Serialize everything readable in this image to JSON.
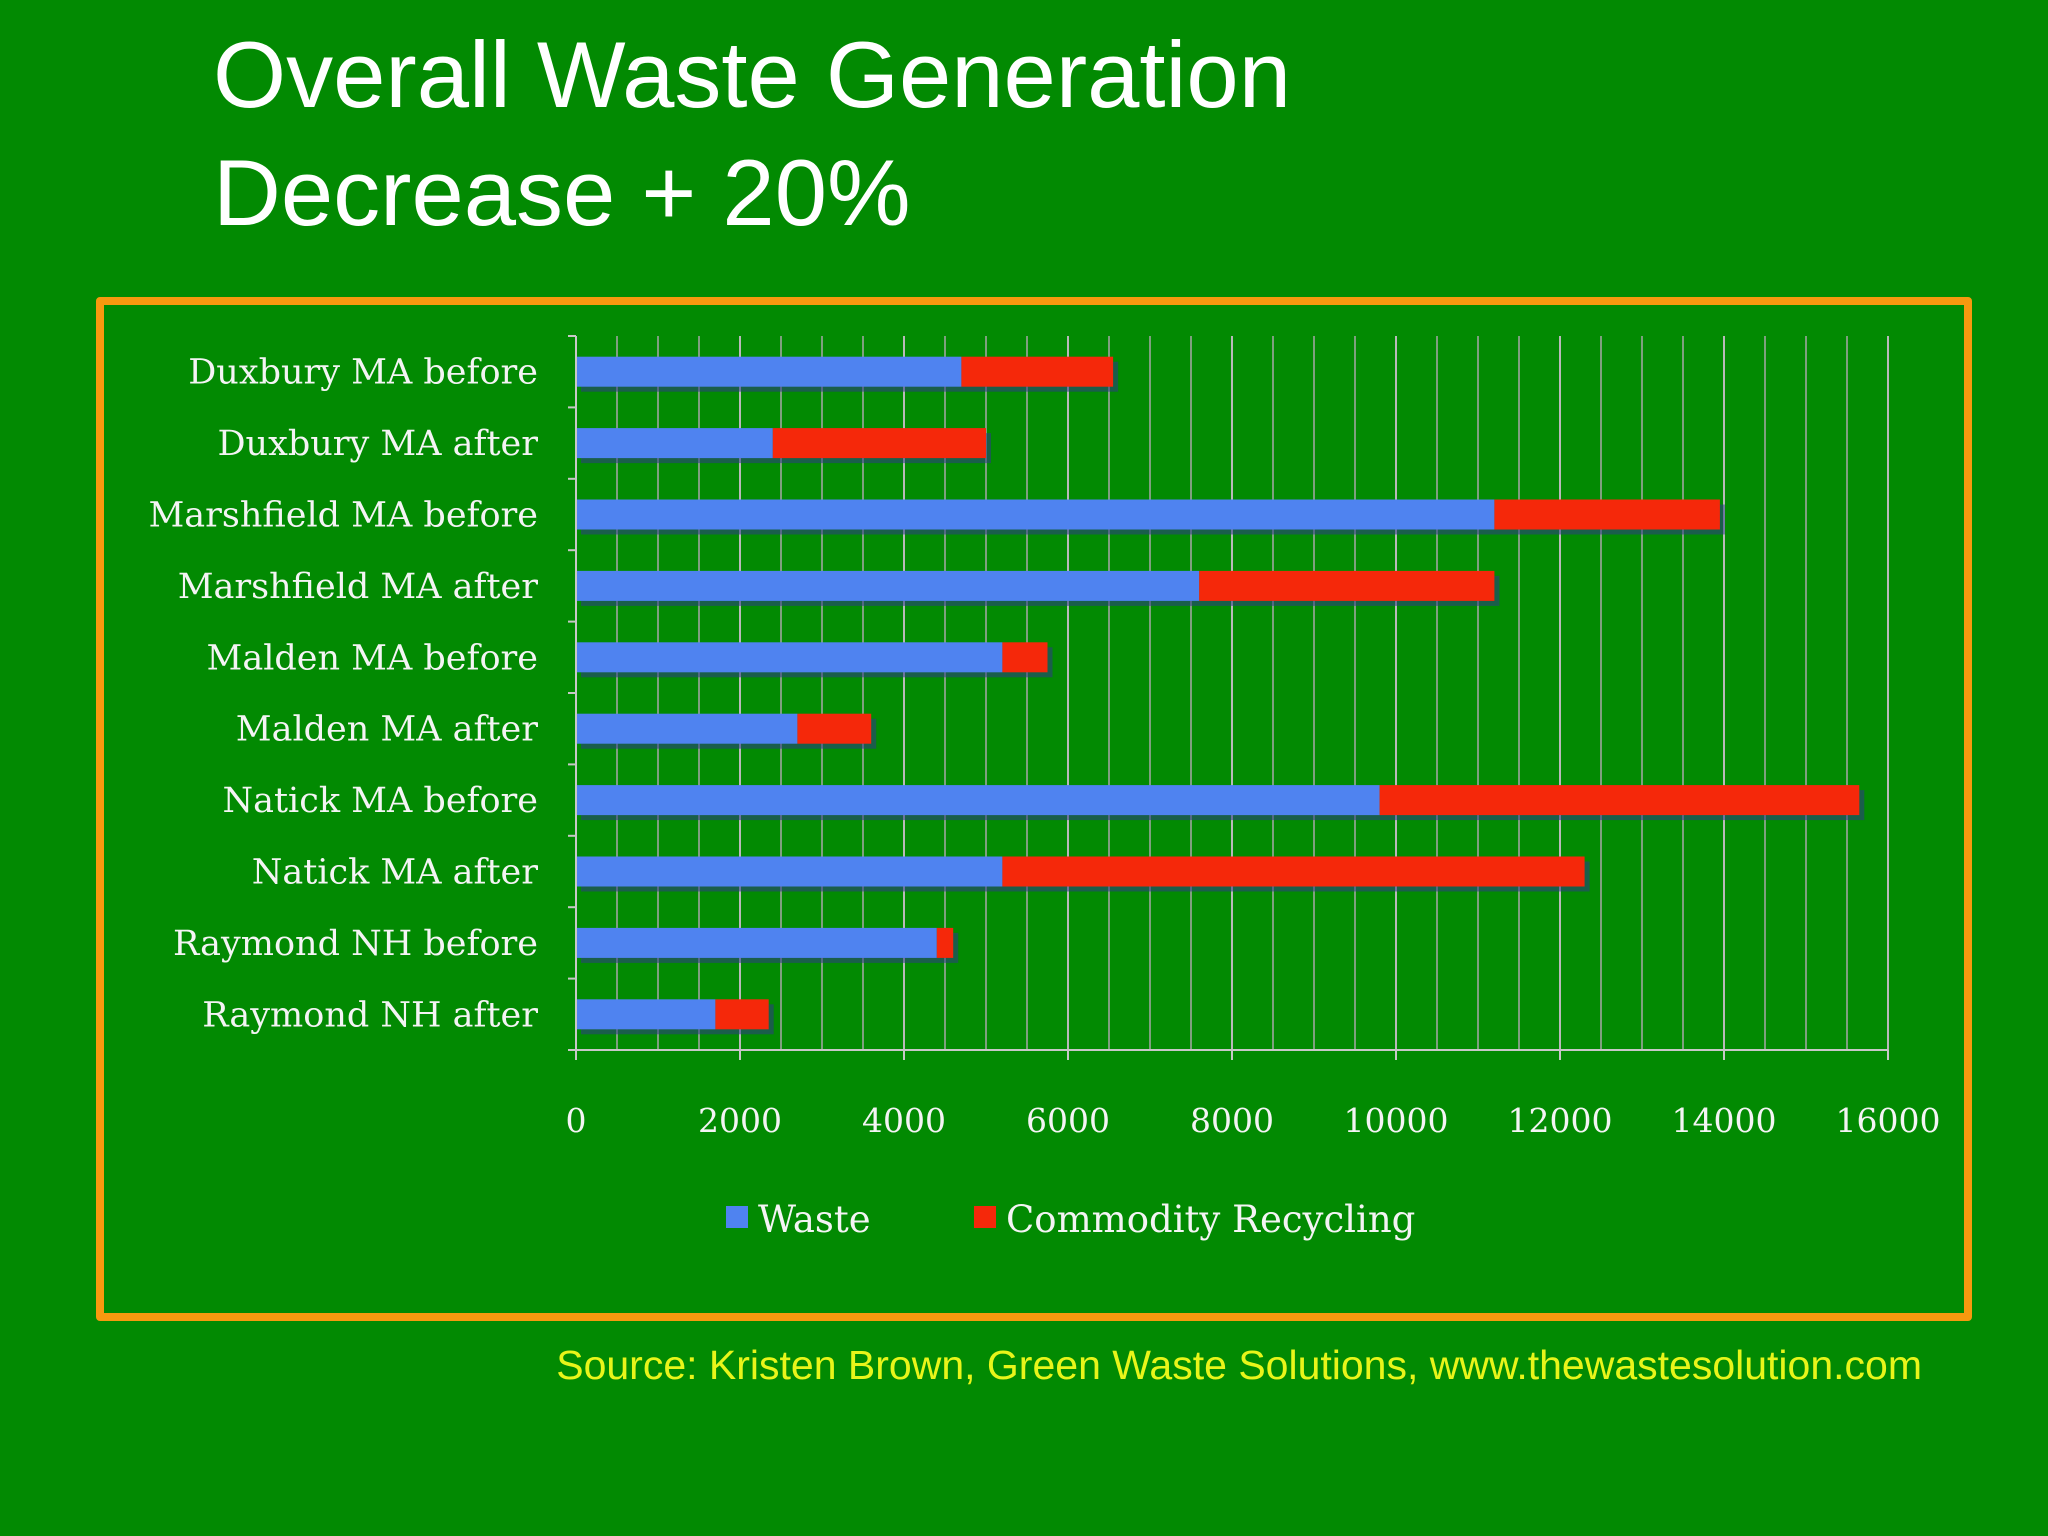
{
  "title": {
    "line1": "Overall Waste Generation",
    "line2": "Decrease + 20%"
  },
  "source": "Source:  Kristen Brown, Green Waste Solutions, www.thewastesolution.com",
  "colors": {
    "background": "#028a02",
    "frame": "#f7990f",
    "waste": "#4f83f0",
    "recycling": "#f5280a",
    "source_text": "#e8f51a",
    "label_text": "#f4f4f4"
  },
  "chart_data": {
    "type": "bar",
    "orientation": "horizontal",
    "stacked": true,
    "title": "",
    "xlabel": "",
    "ylabel": "",
    "categories": [
      "Duxbury MA before",
      "Duxbury MA after",
      "Marshfield MA before",
      "Marshfield MA after",
      "Malden MA before",
      "Malden MA after",
      "Natick MA before",
      "Natick MA after",
      "Raymond NH before",
      "Raymond NH after"
    ],
    "series": [
      {
        "name": "Waste",
        "color": "#4f83f0",
        "values": [
          4700,
          2400,
          11200,
          7600,
          5200,
          2700,
          9800,
          5200,
          4400,
          1700
        ]
      },
      {
        "name": "Commodity Recycling",
        "color": "#f5280a",
        "values": [
          1850,
          2600,
          2750,
          3600,
          550,
          900,
          5850,
          7100,
          200,
          650
        ]
      }
    ],
    "xlim": [
      0,
      16000
    ],
    "xticks": [
      "0",
      "2000",
      "4000",
      "6000",
      "8000",
      "10000",
      "12000",
      "14000",
      "16000"
    ],
    "grid": true,
    "legend": "bottom"
  }
}
